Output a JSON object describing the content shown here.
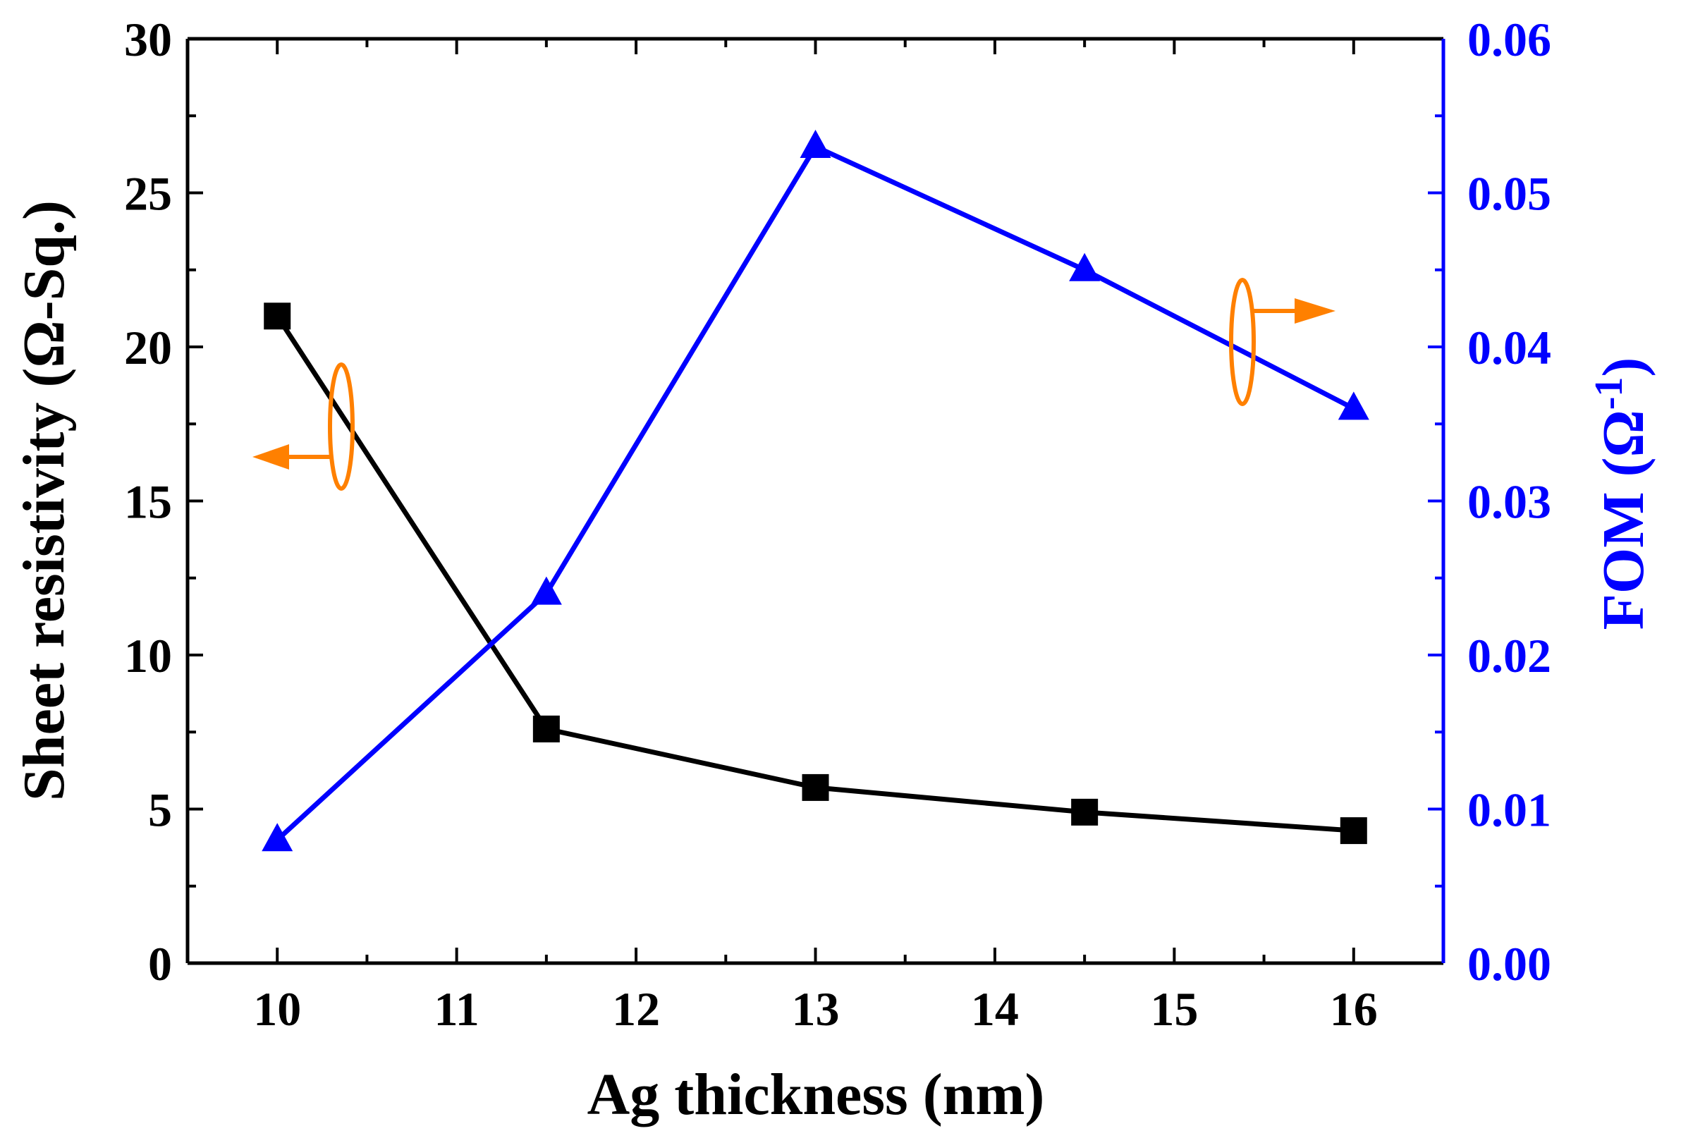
{
  "chart_data": {
    "type": "line",
    "title": "",
    "xlabel": "Ag thickness (nm)",
    "ylabel_left": "Sheet resistivity (Ω-Sq.)",
    "ylabel_right_main": "FOM (Ω",
    "ylabel_right_sup": "-1",
    "ylabel_right_tail": ")",
    "xlim": [
      9.5,
      16.5
    ],
    "ylim_left": [
      0,
      30
    ],
    "ylim_right": [
      0,
      0.06
    ],
    "x_ticks": [
      "10",
      "11",
      "12",
      "13",
      "14",
      "15",
      "16"
    ],
    "y_left_ticks": [
      "0",
      "5",
      "10",
      "15",
      "20",
      "25",
      "30"
    ],
    "y_right_ticks": [
      "0.00",
      "0.01",
      "0.02",
      "0.03",
      "0.04",
      "0.05",
      "0.06"
    ],
    "grid": false,
    "x": [
      10,
      11.5,
      13,
      14.5,
      16
    ],
    "series": [
      {
        "name": "Sheet resistivity",
        "axis": "left",
        "marker": "square",
        "color": "#000000",
        "values": [
          21.0,
          7.6,
          5.7,
          4.9,
          4.3
        ]
      },
      {
        "name": "FOM",
        "axis": "right",
        "marker": "triangle",
        "color": "#0000ff",
        "values": [
          0.008,
          0.024,
          0.053,
          0.045,
          0.036
        ]
      }
    ],
    "annotations": [
      {
        "type": "ellipse-arrow",
        "points_to": "left axis",
        "color": "#ff8000"
      },
      {
        "type": "ellipse-arrow",
        "points_to": "right axis",
        "color": "#ff8000"
      }
    ]
  }
}
